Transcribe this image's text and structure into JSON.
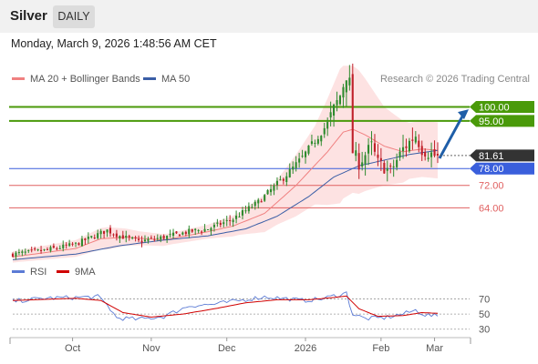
{
  "header": {
    "title": "Silver",
    "tab": "DAILY"
  },
  "timestamp": "Monday, March 9, 2026 1:48:56 AM CET",
  "colors": {
    "ma20": "#f08080",
    "ma50": "#3a5ea6",
    "band_fill": "#fde2e2",
    "up_candle": "#2e8b2e",
    "down_candle": "#c0202a",
    "resistance": "#4a9a0a",
    "support_main": "#3a5fdc",
    "support_minor": "#e06060",
    "rsi": "#5b7bd5",
    "rsi_ma": "#d00000",
    "price_box": "#333333",
    "arrow": "#1e5ea8"
  },
  "chart_data": [
    {
      "type": "candlestick",
      "legend": [
        {
          "label": "MA 20 + Bollinger Bands",
          "color": "#f08080"
        },
        {
          "label": "MA 50",
          "color": "#3a5ea6"
        }
      ],
      "watermark": "Research © 2026 Trading Central",
      "x_ticks": [
        "Oct",
        "Nov",
        "Dec",
        "2026",
        "Feb",
        "Mar"
      ],
      "ylim": [
        44,
        118
      ],
      "levels": [
        {
          "label": "100.00",
          "value": 100,
          "kind": "resistance"
        },
        {
          "label": "95.00",
          "value": 95,
          "kind": "resistance"
        },
        {
          "label": "78.00",
          "value": 78,
          "kind": "support_main"
        },
        {
          "label": "72.00",
          "value": 72,
          "kind": "support_minor"
        },
        {
          "label": "64.00",
          "value": 64,
          "kind": "support_minor"
        }
      ],
      "last_price": "81.61",
      "close_key": [
        [
          0,
          47.5
        ],
        [
          10,
          48.8
        ],
        [
          20,
          51
        ],
        [
          26,
          54
        ],
        [
          30,
          56
        ],
        [
          34,
          54
        ],
        [
          40,
          52
        ],
        [
          48,
          53.5
        ],
        [
          56,
          55.5
        ],
        [
          62,
          56.5
        ],
        [
          70,
          60
        ],
        [
          78,
          66
        ],
        [
          84,
          72.5
        ],
        [
          88,
          77
        ],
        [
          92,
          82
        ],
        [
          96,
          88
        ],
        [
          100,
          94
        ],
        [
          104,
          104
        ],
        [
          106,
          112
        ],
        [
          107,
          108
        ],
        [
          108,
          84
        ],
        [
          110,
          80
        ],
        [
          114,
          86
        ],
        [
          116,
          80
        ],
        [
          120,
          77
        ],
        [
          124,
          85
        ],
        [
          128,
          90
        ],
        [
          130,
          85
        ],
        [
          135,
          82
        ]
      ],
      "ma20_key": [
        [
          0,
          46.5
        ],
        [
          20,
          49.5
        ],
        [
          28,
          53
        ],
        [
          36,
          53.5
        ],
        [
          48,
          52.5
        ],
        [
          62,
          55.5
        ],
        [
          70,
          57.5
        ],
        [
          80,
          62
        ],
        [
          90,
          72
        ],
        [
          100,
          84
        ],
        [
          105,
          91
        ],
        [
          108,
          92
        ],
        [
          112,
          90
        ],
        [
          118,
          86
        ],
        [
          124,
          84
        ],
        [
          130,
          85
        ],
        [
          135,
          84.5
        ]
      ],
      "ma50_key": [
        [
          0,
          45.5
        ],
        [
          20,
          47.5
        ],
        [
          34,
          50.5
        ],
        [
          48,
          52.5
        ],
        [
          62,
          54
        ],
        [
          74,
          56.5
        ],
        [
          84,
          61
        ],
        [
          94,
          68
        ],
        [
          102,
          75
        ],
        [
          110,
          79
        ],
        [
          118,
          81
        ],
        [
          126,
          83
        ],
        [
          135,
          84.5
        ]
      ],
      "band_half_width_key": [
        [
          0,
          2
        ],
        [
          20,
          3
        ],
        [
          30,
          4
        ],
        [
          40,
          2.5
        ],
        [
          50,
          2
        ],
        [
          62,
          2.5
        ],
        [
          72,
          4
        ],
        [
          84,
          8
        ],
        [
          96,
          14
        ],
        [
          104,
          24
        ],
        [
          110,
          22
        ],
        [
          118,
          14
        ],
        [
          126,
          10
        ],
        [
          135,
          10
        ]
      ]
    },
    {
      "type": "line",
      "legend": [
        {
          "label": "RSI",
          "color": "#5b7bd5"
        },
        {
          "label": "9MA",
          "color": "#d00000"
        }
      ],
      "y_ticks": [
        70,
        50,
        30
      ],
      "ylim": [
        20,
        90
      ],
      "rsi_key": [
        [
          0,
          67
        ],
        [
          10,
          71
        ],
        [
          20,
          72
        ],
        [
          27,
          73
        ],
        [
          30,
          62
        ],
        [
          33,
          45
        ],
        [
          40,
          43
        ],
        [
          48,
          47
        ],
        [
          56,
          61
        ],
        [
          64,
          63
        ],
        [
          72,
          68
        ],
        [
          80,
          73
        ],
        [
          88,
          70
        ],
        [
          92,
          68
        ],
        [
          98,
          70
        ],
        [
          104,
          76
        ],
        [
          106,
          78
        ],
        [
          108,
          50
        ],
        [
          112,
          44
        ],
        [
          118,
          45
        ],
        [
          124,
          50
        ],
        [
          128,
          55
        ],
        [
          131,
          49
        ],
        [
          135,
          47
        ]
      ],
      "ma_key": [
        [
          0,
          68
        ],
        [
          20,
          71
        ],
        [
          28,
          68
        ],
        [
          35,
          52
        ],
        [
          44,
          46
        ],
        [
          54,
          50
        ],
        [
          64,
          57
        ],
        [
          74,
          65
        ],
        [
          84,
          69
        ],
        [
          94,
          69
        ],
        [
          102,
          72
        ],
        [
          106,
          74
        ],
        [
          110,
          57
        ],
        [
          116,
          47
        ],
        [
          124,
          48
        ],
        [
          130,
          52
        ],
        [
          135,
          51
        ]
      ]
    }
  ]
}
